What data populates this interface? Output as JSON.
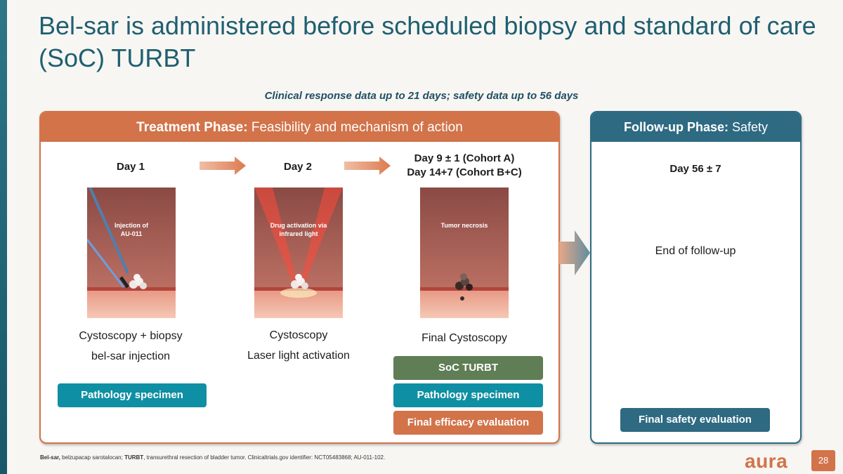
{
  "title": "Bel-sar is administered before scheduled biopsy and standard of care (SoC) TURBT",
  "subtitle": "Clinical response data up to 21 days; safety data up to 56 days",
  "treatment": {
    "header_bold": "Treatment Phase:",
    "header_rest": " Feasibility and mechanism of action",
    "steps": [
      {
        "day": "Day 1",
        "image_caption_1": "Injection of",
        "image_caption_2": "AU-011",
        "caption_1": "Cystoscopy + biopsy",
        "caption_2": "bel-sar injection"
      },
      {
        "day": "Day 2",
        "image_caption_1": "Drug activation via",
        "image_caption_2": "infrared light",
        "caption_1": "Cystoscopy",
        "caption_2": "Laser light activation"
      },
      {
        "day_1": "Day 9 ± 1 (Cohort A)",
        "day_2": "Day 14+7 (Cohort B+C)",
        "image_caption_1": "Tumor necrosis",
        "caption_1": "Final Cystoscopy"
      }
    ],
    "badges": {
      "pathology_day1": "Pathology specimen",
      "soc_turbt": "SoC TURBT",
      "pathology_final": "Pathology specimen",
      "final_efficacy": "Final efficacy evaluation"
    }
  },
  "followup": {
    "header_bold": "Follow-up Phase:",
    "header_rest": " Safety",
    "day": "Day 56 ± 7",
    "end_text": "End of follow-up",
    "badge": "Final safety evaluation"
  },
  "footnote": {
    "term_1": "Bel-sar,",
    "def_1": " belzupacap sarotalocan; ",
    "term_2": "TURBT",
    "def_2": ", transurethral resection of bladder tumor. Clinicaltrials.gov identifier: NCT05483868; AU-011-102."
  },
  "logo": "aura",
  "page_number": "28",
  "colors": {
    "title": "#1f5f70",
    "treatment_accent": "#d2734a",
    "followup_accent": "#2e6a82",
    "pathology_badge": "#0f8fa3",
    "soc_badge": "#5f7e55"
  }
}
